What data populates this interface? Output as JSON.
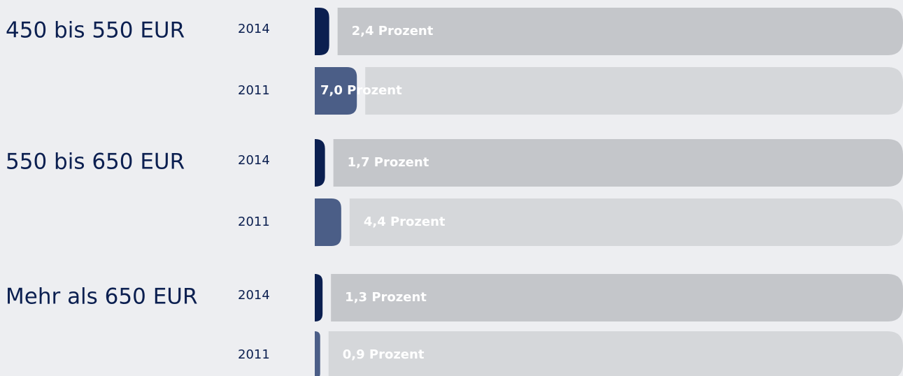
{
  "chart_data": {
    "type": "bar",
    "categories": [
      "450 bis 550 EUR",
      "550 bis 650 EUR",
      "Mehr als 650 EUR"
    ],
    "series": [
      {
        "name": "2014",
        "color": "#0b1f50",
        "values": [
          2.4,
          1.7,
          1.3
        ],
        "value_labels": [
          "2,4 Prozent",
          "1,7 Prozent",
          "1,3 Prozent"
        ]
      },
      {
        "name": "2011",
        "color": "#4b5e87",
        "values": [
          7.0,
          4.4,
          0.9
        ],
        "value_labels": [
          "7,0 Prozent",
          "4,4 Prozent",
          "0,9 Prozent"
        ]
      }
    ]
  }
}
